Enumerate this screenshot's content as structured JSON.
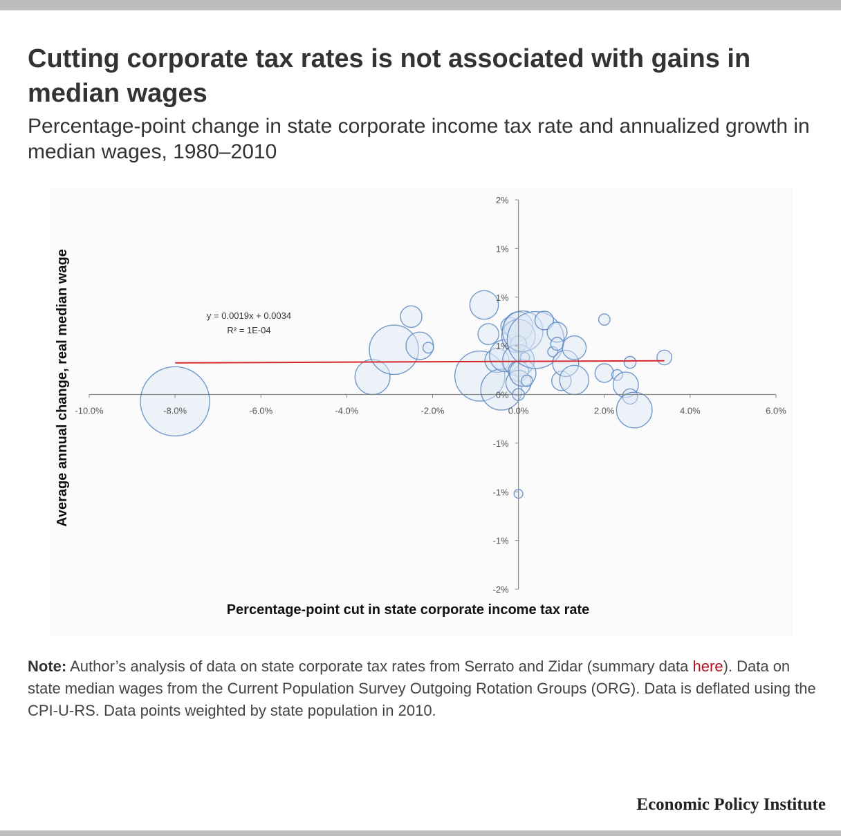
{
  "header": {
    "title": "Cutting corporate tax rates is not associated with gains in median wages",
    "subtitle": "Percentage-point change in state corporate income tax rate and annualized growth in median wages, 1980–2010"
  },
  "note": {
    "label": "Note:",
    "text_before_link": "Author’s analysis of data on state corporate tax rates from Serrato and Zidar (summary data ",
    "link_text": "here",
    "text_after_link": "). Data on state median wages from the Current Population Survey Outgoing Rotation Groups (ORG). Data is deflated using the CPI-U-RS. Data points weighted by state population in 2010."
  },
  "brand": "Economic Policy Institute",
  "colors": {
    "bubble_fill": "#dbe6f4",
    "bubble_stroke": "#5b87c2",
    "trend_line": "#d9272e",
    "axis": "#8a8a8a",
    "link": "#b5121b",
    "bars": "#bdbdbd"
  },
  "chart_data": {
    "type": "scatter",
    "variant": "bubble",
    "xlabel": "Percentage-point cut in state corporate income tax rate",
    "ylabel": "Average annual change, real median wage",
    "xlim": [
      -10,
      6
    ],
    "ylim": [
      -2,
      2
    ],
    "x_ticks": [
      {
        "value": -10,
        "label": "-10.0%"
      },
      {
        "value": -8,
        "label": "-8.0%"
      },
      {
        "value": -6,
        "label": "-6.0%"
      },
      {
        "value": -4,
        "label": "-4.0%"
      },
      {
        "value": -2,
        "label": "-2.0%"
      },
      {
        "value": 0,
        "label": "0.0%"
      },
      {
        "value": 2,
        "label": "2.0%"
      },
      {
        "value": 4,
        "label": "4.0%"
      },
      {
        "value": 6,
        "label": "6.0%"
      }
    ],
    "y_ticks": [
      {
        "value": 2,
        "label": "2%"
      },
      {
        "value": 1.5,
        "label": "1%"
      },
      {
        "value": 1,
        "label": "1%"
      },
      {
        "value": 0.5,
        "label": "1%"
      },
      {
        "value": 0,
        "label": "0%"
      },
      {
        "value": -0.5,
        "label": "-1%"
      },
      {
        "value": -1,
        "label": "-1%"
      },
      {
        "value": -1.5,
        "label": "-1%"
      },
      {
        "value": -2,
        "label": "-2%"
      }
    ],
    "trendline": {
      "equation": "y = 0.0019x + 0.0034",
      "r_squared": "R² = 1E-04",
      "x_range": [
        -8,
        3.4
      ],
      "slope": 0.0019,
      "intercept": 0.34
    },
    "points": [
      {
        "x": -8.0,
        "y": -0.07,
        "pop": 37.3
      },
      {
        "x": -3.4,
        "y": 0.18,
        "pop": 9.5
      },
      {
        "x": -2.9,
        "y": 0.46,
        "pop": 18.8
      },
      {
        "x": -2.5,
        "y": 0.8,
        "pop": 3.6
      },
      {
        "x": -2.3,
        "y": 0.5,
        "pop": 5.9
      },
      {
        "x": -2.1,
        "y": 0.48,
        "pop": 0.9
      },
      {
        "x": -0.9,
        "y": 0.19,
        "pop": 19.4
      },
      {
        "x": -0.8,
        "y": 0.92,
        "pop": 6.4
      },
      {
        "x": -0.7,
        "y": 0.62,
        "pop": 3.4
      },
      {
        "x": -0.5,
        "y": 0.35,
        "pop": 4.5
      },
      {
        "x": -0.4,
        "y": 0.05,
        "pop": 13.0
      },
      {
        "x": -0.3,
        "y": 0.4,
        "pop": 8.0
      },
      {
        "x": -0.2,
        "y": 0.7,
        "pop": 2.5
      },
      {
        "x": 0.0,
        "y": 0.7,
        "pop": 6.5
      },
      {
        "x": 0.0,
        "y": 0.6,
        "pop": 8.7
      },
      {
        "x": 0.0,
        "y": 0.52,
        "pop": 2.0
      },
      {
        "x": 0.0,
        "y": 0.35,
        "pop": 7.8
      },
      {
        "x": 0.0,
        "y": 0.24,
        "pop": 3.2
      },
      {
        "x": 0.0,
        "y": 0.12,
        "pop": 4.9
      },
      {
        "x": 0.0,
        "y": 0.0,
        "pop": 1.1
      },
      {
        "x": 0.0,
        "y": -1.02,
        "pop": 0.6
      },
      {
        "x": 0.1,
        "y": 0.22,
        "pop": 5.5
      },
      {
        "x": 0.1,
        "y": 0.65,
        "pop": 12.8
      },
      {
        "x": 0.15,
        "y": 0.38,
        "pop": 0.7
      },
      {
        "x": 0.2,
        "y": 0.14,
        "pop": 1.0
      },
      {
        "x": 0.4,
        "y": 0.56,
        "pop": 25.1
      },
      {
        "x": 0.6,
        "y": 0.76,
        "pop": 2.7
      },
      {
        "x": 0.8,
        "y": 0.44,
        "pop": 0.8
      },
      {
        "x": 0.9,
        "y": 0.64,
        "pop": 3.1
      },
      {
        "x": 0.9,
        "y": 0.52,
        "pop": 1.3
      },
      {
        "x": 1.0,
        "y": 0.14,
        "pop": 2.9
      },
      {
        "x": 1.1,
        "y": 0.32,
        "pop": 5.3
      },
      {
        "x": 1.3,
        "y": 0.15,
        "pop": 6.6
      },
      {
        "x": 1.3,
        "y": 0.48,
        "pop": 4.4
      },
      {
        "x": 2.0,
        "y": 0.77,
        "pop": 1.0
      },
      {
        "x": 2.0,
        "y": 0.22,
        "pop": 2.7
      },
      {
        "x": 2.3,
        "y": 0.2,
        "pop": 0.9
      },
      {
        "x": 2.5,
        "y": 0.1,
        "pop": 5.0
      },
      {
        "x": 2.6,
        "y": -0.02,
        "pop": 1.8
      },
      {
        "x": 2.6,
        "y": 0.33,
        "pop": 1.1
      },
      {
        "x": 2.7,
        "y": -0.16,
        "pop": 9.9
      },
      {
        "x": 3.4,
        "y": 0.38,
        "pop": 1.7
      }
    ]
  }
}
